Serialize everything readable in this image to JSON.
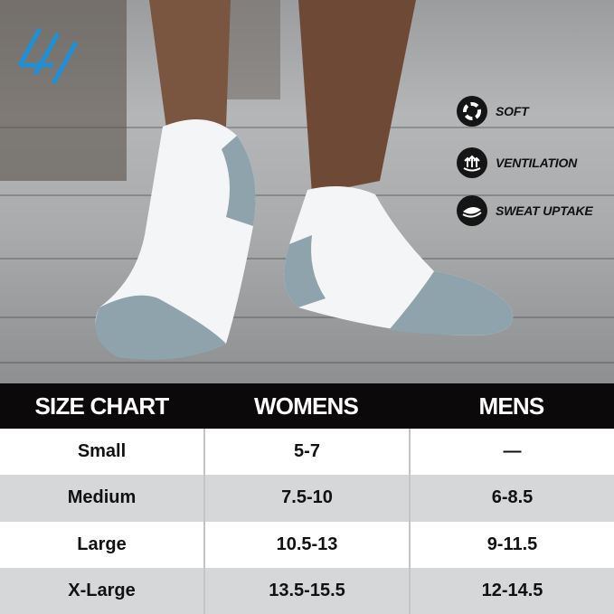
{
  "features": [
    {
      "icon": "swirl-soft-icon",
      "label": "SOFT"
    },
    {
      "icon": "ventilation-arrows-icon",
      "label": "VENTILATION"
    },
    {
      "icon": "layers-sweat-icon",
      "label": "SWEAT UPTAKE"
    }
  ],
  "colors": {
    "logo": "#1f8fd6",
    "header_bg": "#0b0909",
    "row_alt": "#d6d7d9",
    "sock_gray": "#8fa3ad"
  },
  "size_chart": {
    "headers": [
      "SIZE CHART",
      "WOMENS",
      "MENS"
    ],
    "rows": [
      [
        "Small",
        "5-7",
        "—"
      ],
      [
        "Medium",
        "7.5-10",
        "6-8.5"
      ],
      [
        "Large",
        "10.5-13",
        "9-11.5"
      ],
      [
        "X-Large",
        "13.5-15.5",
        "12-14.5"
      ]
    ]
  }
}
